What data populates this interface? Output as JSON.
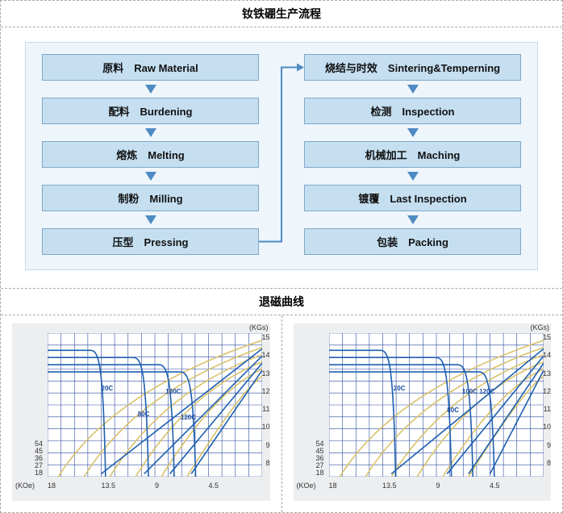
{
  "section1_title": "钕铁硼生产流程",
  "section2_title": "退磁曲线",
  "flow": {
    "bg": "#eef5fb",
    "border": "#c8d8ea",
    "box_bg": "#c5dff1",
    "box_border": "#7fa8c9",
    "arrow_color": "#4e8bc2",
    "left": [
      "原料　Raw Material",
      "配料　Burdening",
      "熔炼　Melting",
      "制粉　Milling",
      "压型　Pressing"
    ],
    "right": [
      "烧结与时效　Sintering&Temperning",
      "检测　Inspection",
      "机械加工　Maching",
      "镀覆　Last Inspection",
      "包装　Packing"
    ]
  },
  "chart_common": {
    "y_unit": "(KGs)",
    "x_unit": "(KOe)",
    "grid_color": "#2b4aa0",
    "bg": "#eceef0",
    "ymax": 15,
    "y_ticks_right": [
      15,
      14,
      13,
      12,
      11,
      10,
      9,
      8
    ],
    "y_ticks_left": [
      54,
      45,
      36,
      27,
      18
    ],
    "x_ticks": [
      18,
      13.5,
      9,
      4.5
    ],
    "temp_color": "#1a4aa0",
    "curve_main": "#1d5fb0",
    "curve_aux": "#d9c26a"
  },
  "chart_left": {
    "temps": [
      "20C",
      "80C",
      "100C",
      "120C"
    ],
    "temp_x": [
      0.25,
      0.42,
      0.55,
      0.62
    ],
    "temp_y": [
      0.4,
      0.58,
      0.42,
      0.6
    ],
    "knees_x": [
      0.2,
      0.4,
      0.52,
      0.62
    ],
    "plateau_y": [
      0.12,
      0.17,
      0.22,
      0.27
    ]
  },
  "chart_right": {
    "temps": [
      "20C",
      "80C",
      "100C",
      "120C"
    ],
    "temp_x": [
      0.3,
      0.55,
      0.62,
      0.7
    ],
    "temp_y": [
      0.4,
      0.55,
      0.42,
      0.42
    ],
    "knees_x": [
      0.24,
      0.5,
      0.6,
      0.7
    ],
    "plateau_y": [
      0.12,
      0.17,
      0.22,
      0.27
    ]
  }
}
